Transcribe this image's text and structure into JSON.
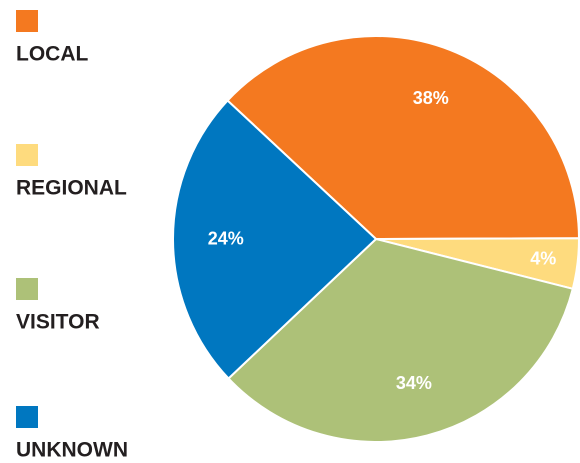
{
  "chart_data": {
    "type": "pie",
    "categories": [
      "LOCAL",
      "REGIONAL",
      "VISITOR",
      "UNKNOWN"
    ],
    "values": [
      38,
      4,
      34,
      24
    ],
    "value_labels": [
      "38%",
      "4%",
      "34%",
      "24%"
    ],
    "colors": [
      "#f47920",
      "#fedb7e",
      "#adc178",
      "#0077c0"
    ]
  }
}
